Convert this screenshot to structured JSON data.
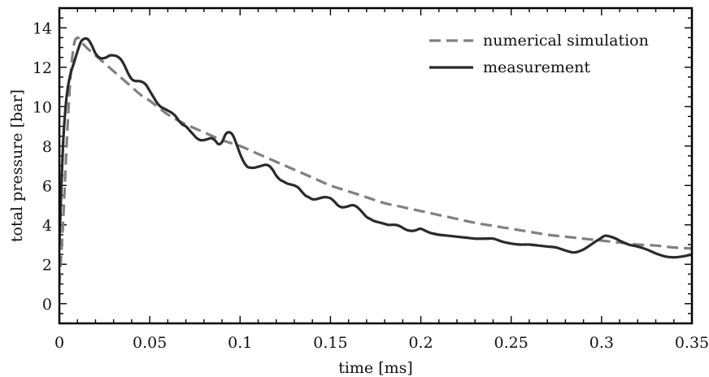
{
  "chart_data": {
    "type": "line",
    "title": "",
    "xlabel": "time [ms]",
    "ylabel": "total pressure [bar]",
    "xlim": [
      0,
      0.35
    ],
    "ylim": [
      -1,
      15
    ],
    "xticks": [
      0,
      0.05,
      0.1,
      0.15,
      0.2,
      0.25,
      0.3,
      0.35
    ],
    "xtick_labels": [
      "0",
      "0.05",
      "0.1",
      "0.15",
      "0.2",
      "0.25",
      "0.3",
      "0.35"
    ],
    "yticks": [
      0,
      2,
      4,
      6,
      8,
      10,
      12,
      14
    ],
    "ytick_labels": [
      "0",
      "2",
      "4",
      "6",
      "8",
      "10",
      "12",
      "14"
    ],
    "grid": false,
    "legend_position": "top-right",
    "series": [
      {
        "name": "numerical simulation",
        "style": "dashed",
        "color": "#808080",
        "x": [
          0,
          0.002,
          0.004,
          0.006,
          0.008,
          0.01,
          0.012,
          0.015,
          0.02,
          0.025,
          0.03,
          0.035,
          0.04,
          0.045,
          0.05,
          0.06,
          0.07,
          0.08,
          0.09,
          0.1,
          0.11,
          0.12,
          0.13,
          0.14,
          0.15,
          0.16,
          0.17,
          0.18,
          0.19,
          0.2,
          0.21,
          0.22,
          0.23,
          0.24,
          0.25,
          0.26,
          0.27,
          0.28,
          0.29,
          0.3,
          0.31,
          0.32,
          0.33,
          0.34,
          0.35
        ],
        "y": [
          1.0,
          4.0,
          8.0,
          11.3,
          13.1,
          13.5,
          13.3,
          13.0,
          12.6,
          12.2,
          11.8,
          11.4,
          11.0,
          10.6,
          10.3,
          9.6,
          9.1,
          8.7,
          8.3,
          8.0,
          7.6,
          7.2,
          6.8,
          6.4,
          6.0,
          5.7,
          5.4,
          5.1,
          4.9,
          4.7,
          4.5,
          4.3,
          4.1,
          3.95,
          3.8,
          3.65,
          3.5,
          3.4,
          3.3,
          3.2,
          3.1,
          3.0,
          2.95,
          2.85,
          2.8
        ]
      },
      {
        "name": "measurement",
        "style": "solid",
        "color": "#2a2a2a",
        "x": [
          0,
          0.002,
          0.004,
          0.006,
          0.008,
          0.01,
          0.012,
          0.014,
          0.016,
          0.018,
          0.02,
          0.022,
          0.024,
          0.026,
          0.028,
          0.03,
          0.032,
          0.034,
          0.036,
          0.038,
          0.04,
          0.042,
          0.044,
          0.046,
          0.048,
          0.05,
          0.052,
          0.054,
          0.056,
          0.058,
          0.06,
          0.062,
          0.064,
          0.066,
          0.068,
          0.07,
          0.072,
          0.074,
          0.076,
          0.078,
          0.08,
          0.082,
          0.084,
          0.086,
          0.088,
          0.09,
          0.092,
          0.094,
          0.096,
          0.098,
          0.1,
          0.102,
          0.104,
          0.106,
          0.108,
          0.11,
          0.112,
          0.114,
          0.116,
          0.118,
          0.12,
          0.122,
          0.124,
          0.126,
          0.128,
          0.13,
          0.132,
          0.134,
          0.136,
          0.138,
          0.14,
          0.142,
          0.144,
          0.146,
          0.148,
          0.15,
          0.152,
          0.154,
          0.156,
          0.158,
          0.16,
          0.162,
          0.164,
          0.166,
          0.168,
          0.17,
          0.172,
          0.174,
          0.176,
          0.178,
          0.18,
          0.182,
          0.184,
          0.186,
          0.188,
          0.19,
          0.192,
          0.194,
          0.196,
          0.198,
          0.2,
          0.205,
          0.21,
          0.215,
          0.22,
          0.225,
          0.23,
          0.235,
          0.24,
          0.245,
          0.25,
          0.255,
          0.26,
          0.265,
          0.27,
          0.275,
          0.28,
          0.285,
          0.29,
          0.295,
          0.3,
          0.302,
          0.305,
          0.308,
          0.31,
          0.315,
          0.32,
          0.325,
          0.33,
          0.335,
          0.34,
          0.345,
          0.35
        ],
        "y": [
          3.0,
          8.0,
          10.5,
          11.6,
          12.2,
          12.8,
          13.3,
          13.45,
          13.4,
          13.1,
          12.7,
          12.5,
          12.45,
          12.5,
          12.6,
          12.6,
          12.55,
          12.4,
          12.1,
          11.7,
          11.4,
          11.3,
          11.3,
          11.25,
          11.1,
          10.8,
          10.5,
          10.2,
          10.0,
          9.9,
          9.8,
          9.7,
          9.55,
          9.3,
          9.1,
          9.0,
          8.8,
          8.6,
          8.4,
          8.3,
          8.3,
          8.35,
          8.4,
          8.3,
          8.1,
          8.2,
          8.6,
          8.7,
          8.55,
          8.1,
          7.6,
          7.2,
          6.95,
          6.9,
          6.9,
          6.95,
          7.0,
          7.05,
          7.0,
          6.8,
          6.5,
          6.3,
          6.2,
          6.1,
          6.05,
          6.0,
          5.9,
          5.7,
          5.5,
          5.4,
          5.3,
          5.3,
          5.35,
          5.4,
          5.4,
          5.35,
          5.2,
          5.0,
          4.9,
          4.9,
          4.95,
          5.0,
          4.95,
          4.8,
          4.6,
          4.4,
          4.3,
          4.2,
          4.15,
          4.1,
          4.05,
          4.0,
          4.0,
          4.0,
          3.95,
          3.85,
          3.75,
          3.7,
          3.7,
          3.75,
          3.8,
          3.6,
          3.5,
          3.45,
          3.4,
          3.35,
          3.3,
          3.3,
          3.3,
          3.15,
          3.05,
          3.0,
          3.0,
          2.95,
          2.9,
          2.85,
          2.7,
          2.6,
          2.75,
          3.05,
          3.35,
          3.45,
          3.4,
          3.3,
          3.2,
          3.0,
          2.9,
          2.75,
          2.55,
          2.4,
          2.35,
          2.4,
          2.5
        ]
      }
    ]
  }
}
